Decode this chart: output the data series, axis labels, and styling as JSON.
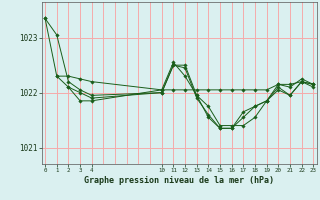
{
  "background_color": "#daf0f0",
  "grid_color": "#f5aaaa",
  "line_color": "#1a5e1a",
  "title": "Graphe pression niveau de la mer (hPa)",
  "ylabel_vals": [
    1021,
    1022,
    1023
  ],
  "xtick_positions": [
    0,
    1,
    2,
    3,
    4,
    10,
    11,
    12,
    13,
    14,
    15,
    16,
    17,
    18,
    19,
    20,
    21,
    22,
    23
  ],
  "all_x_gridlines": [
    0,
    1,
    2,
    3,
    4,
    5,
    6,
    7,
    8,
    9,
    10,
    11,
    12,
    13,
    14,
    15,
    16,
    17,
    18,
    19,
    20,
    21,
    22,
    23
  ],
  "series": [
    {
      "x": [
        0,
        1,
        2,
        3,
        4,
        10,
        11,
        12,
        13,
        14,
        15,
        16,
        17,
        18,
        19,
        20,
        21,
        22,
        23
      ],
      "y": [
        1023.35,
        1023.05,
        1022.2,
        1022.05,
        1021.95,
        1022.0,
        1022.5,
        1022.5,
        1021.95,
        1021.75,
        1021.4,
        1021.4,
        1021.4,
        1021.55,
        1021.85,
        1022.15,
        1022.15,
        1022.2,
        1022.15
      ]
    },
    {
      "x": [
        1,
        2,
        3,
        4,
        10,
        11,
        12,
        13,
        14,
        15,
        16,
        17,
        18,
        19,
        20,
        21,
        22,
        23
      ],
      "y": [
        1022.3,
        1022.3,
        1022.25,
        1022.2,
        1022.05,
        1022.05,
        1022.05,
        1022.05,
        1022.05,
        1022.05,
        1022.05,
        1022.05,
        1022.05,
        1022.05,
        1022.15,
        1022.1,
        1022.25,
        1022.15
      ]
    },
    {
      "x": [
        2,
        3,
        4,
        10,
        11,
        12,
        13,
        14,
        15,
        16,
        17,
        18,
        19,
        20,
        21,
        22,
        23
      ],
      "y": [
        1022.1,
        1021.85,
        1021.85,
        1022.05,
        1022.55,
        1022.3,
        1021.95,
        1021.55,
        1021.35,
        1021.35,
        1021.55,
        1021.75,
        1021.85,
        1022.05,
        1021.95,
        1022.2,
        1022.15
      ]
    },
    {
      "x": [
        0,
        1,
        2,
        3,
        4,
        10,
        11,
        12,
        13,
        14,
        15,
        16,
        17,
        18,
        19,
        20,
        21,
        22,
        23
      ],
      "y": [
        1023.35,
        1022.3,
        1022.1,
        1022.0,
        1021.9,
        1022.0,
        1022.5,
        1022.45,
        1021.9,
        1021.6,
        1021.35,
        1021.35,
        1021.65,
        1021.75,
        1021.85,
        1022.1,
        1021.95,
        1022.2,
        1022.1
      ]
    }
  ],
  "ylim": [
    1020.7,
    1023.65
  ],
  "xlim": [
    -0.3,
    23.3
  ]
}
